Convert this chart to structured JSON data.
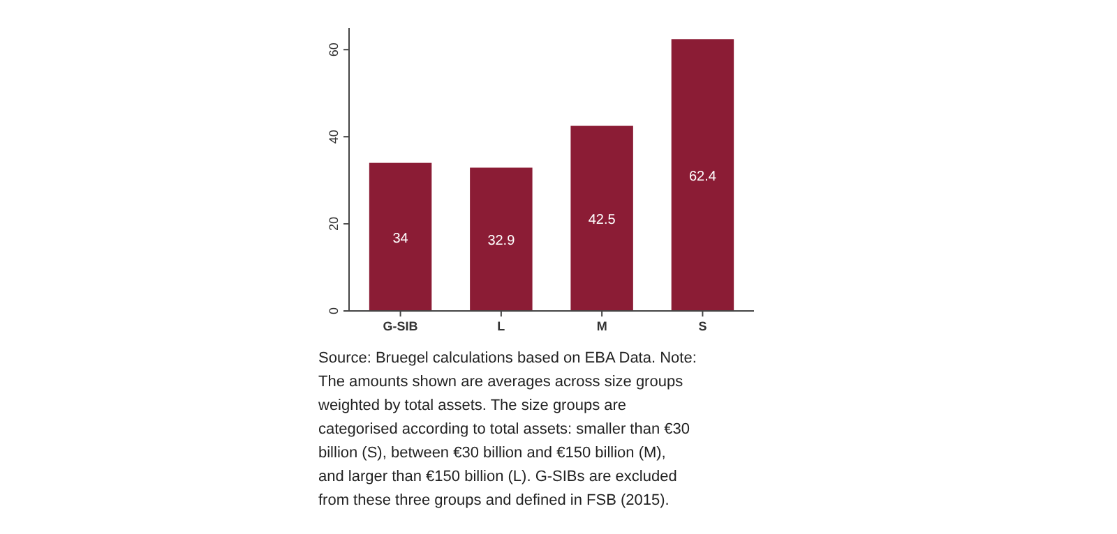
{
  "chart_data": {
    "type": "bar",
    "categories": [
      "G-SIB",
      "L",
      "M",
      "S"
    ],
    "values": [
      34,
      32.9,
      42.5,
      62.4
    ],
    "color": "#8b1c35",
    "ylim": [
      0,
      65
    ],
    "yticks": [
      0,
      20,
      40,
      60
    ],
    "grid": false,
    "data_labels": true,
    "annotations": [
      "Source: Bruegel calculations based on EBA Data. Note: The amounts shown are averages across size groups weighted by total assets. The size groups are categorised according to total assets: smaller than €30 billion (S), between €30 billion and €150 billion (M), and larger than €150 billion (L). G-SIBs are excluded from these three groups and defined in FSB (2015)."
    ]
  }
}
